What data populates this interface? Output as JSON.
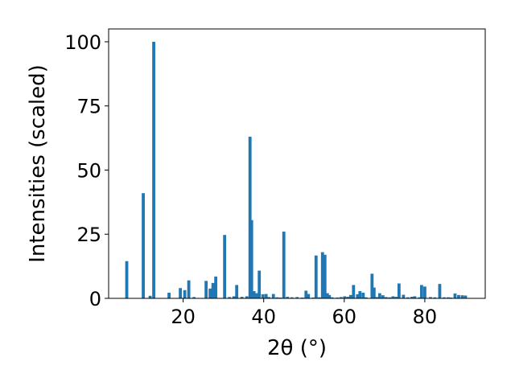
{
  "chart_data": {
    "type": "bar",
    "xlabel": "2θ (°)",
    "ylabel": "Intensities (scaled)",
    "xlim": [
      1.5,
      95
    ],
    "ylim": [
      0,
      105
    ],
    "xticks": [
      20,
      40,
      60,
      80
    ],
    "yticks": [
      0,
      25,
      50,
      75,
      100
    ],
    "xtick_labels": [
      "20",
      "40",
      "60",
      "80"
    ],
    "ytick_labels": [
      "0",
      "25",
      "50",
      "75",
      "100"
    ],
    "bar_color": "#1f77b4",
    "grid": false,
    "x": [
      6.0,
      10.1,
      11.8,
      12.7,
      16.5,
      19.3,
      20.4,
      21.4,
      22.7,
      25.7,
      26.7,
      27.4,
      28.1,
      30.3,
      31.5,
      32.6,
      33.3,
      34.6,
      35.8,
      36.6,
      37.0,
      37.6,
      38.2,
      38.9,
      39.8,
      40.6,
      41.3,
      42.4,
      43.3,
      44.1,
      45.0,
      45.9,
      47.0,
      48.3,
      49.6,
      50.5,
      51.1,
      52.3,
      53.0,
      53.8,
      54.6,
      55.2,
      55.8,
      56.3,
      57.0,
      58.3,
      59.2,
      60.1,
      60.9,
      61.6,
      62.3,
      63.3,
      63.9,
      64.7,
      65.4,
      66.9,
      67.4,
      68.1,
      68.8,
      69.6,
      70.4,
      71.3,
      72.1,
      72.9,
      73.6,
      74.7,
      75.8,
      76.8,
      77.5,
      78.7,
      79.2,
      80.0,
      81.4,
      82.5,
      83.7,
      84.8,
      85.8,
      86.4,
      87.5,
      88.4,
      89.3,
      90.1
    ],
    "values": [
      14.5,
      41,
      1,
      100,
      2.2,
      4,
      3.2,
      7,
      0.5,
      6.8,
      3.8,
      6,
      8.5,
      24.7,
      0.5,
      0.8,
      5.2,
      0.6,
      0.8,
      63,
      30.5,
      2.8,
      2,
      10.8,
      1.6,
      1.7,
      0.5,
      1.7,
      0.4,
      0.3,
      26,
      0.6,
      0.4,
      0.5,
      0.3,
      3,
      1.7,
      0.3,
      16.7,
      0.4,
      18,
      17,
      2,
      1.3,
      0.4,
      0.3,
      0.5,
      0.8,
      0.6,
      1.3,
      5.2,
      1.6,
      2.8,
      2.2,
      0.4,
      9.6,
      4.2,
      0.5,
      2,
      1.2,
      0.5,
      0.4,
      0.8,
      0.6,
      5.8,
      1.4,
      0.4,
      0.6,
      0.8,
      0.4,
      5.2,
      4.6,
      0.5,
      0.4,
      5.6,
      0.4,
      0.4,
      0.3,
      1.9,
      1.3,
      1.2,
      1.1
    ]
  }
}
